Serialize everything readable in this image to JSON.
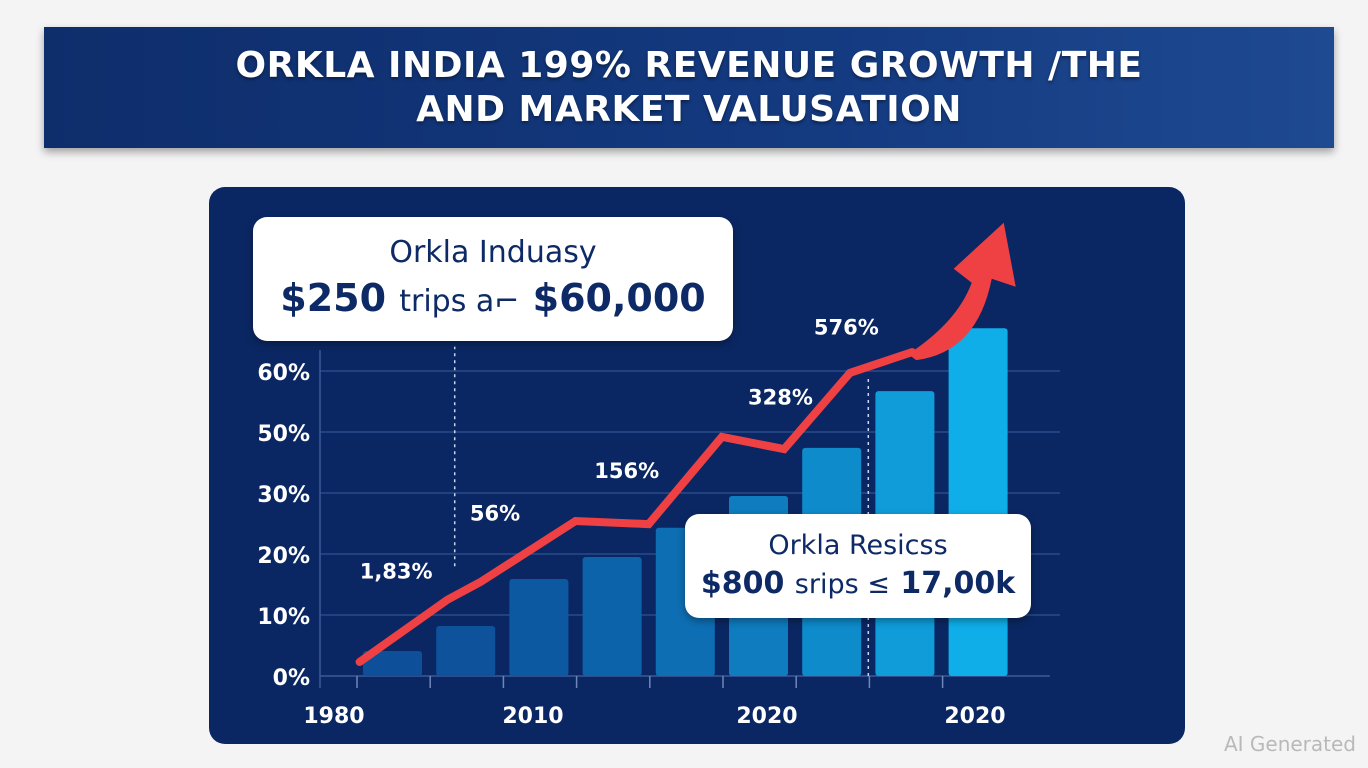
{
  "title": {
    "line1": "Orkla India 199% Revenue Growth /the",
    "line2": "and market Valusation"
  },
  "callouts": [
    {
      "title": "Orkla Induasy",
      "value_left": "$250",
      "value_mid": "trips a⌐",
      "value_right": "$60,000"
    },
    {
      "title": "Orkla Resicss",
      "value_left": "$800",
      "value_mid": "srips ≤",
      "value_right": "17,00k"
    }
  ],
  "watermark": "AI Generated",
  "colors": {
    "background": "#f4f4f5",
    "banner": "#143a80",
    "panel": "#0b2763",
    "line": "#ef4143",
    "bar_start": "#0d4f98",
    "bar_end": "#0faee9",
    "text": "#ffffff",
    "callout_text": "#0d2a66"
  },
  "chart_data": {
    "type": "bar",
    "title": "Orkla India 199% Revenue Growth /the and market Valusation",
    "xlabel": "",
    "ylabel": "",
    "y_tick_labels": [
      "0%",
      "10%",
      "20%",
      "30%",
      "50%",
      "60%"
    ],
    "y_tick_note": "tick labels are evenly spaced; values below are in tick-index units (0 = 0%, 6 = 60% tick)",
    "ylim": [
      0,
      6
    ],
    "x_tick_labels": [
      "1980",
      "2010",
      "2020",
      "2020"
    ],
    "grid": true,
    "legend": "none",
    "bars": {
      "name": "Revenue",
      "values": [
        0.41,
        0.82,
        1.59,
        1.95,
        2.43,
        2.95,
        3.74,
        4.67,
        5.7
      ]
    },
    "line": {
      "name": "Growth",
      "x_index": [
        -0.45,
        0.75,
        1.2,
        2.5,
        3.5,
        4.5,
        5.35,
        6.25,
        7.1
      ],
      "values": [
        0.23,
        1.25,
        1.54,
        2.54,
        2.49,
        3.92,
        3.72,
        4.97,
        5.31
      ],
      "arrow_to": {
        "x_index": 8.35,
        "value": 7.3
      }
    },
    "annotations": [
      {
        "text": "1,83%",
        "x_index": 0.05,
        "value": 1.6
      },
      {
        "text": "56%",
        "x_index": 1.4,
        "value": 2.55
      },
      {
        "text": "156%",
        "x_index": 3.2,
        "value": 3.25
      },
      {
        "text": "328%",
        "x_index": 5.3,
        "value": 4.45
      },
      {
        "text": "576%",
        "x_index": 6.2,
        "value": 5.6
      }
    ],
    "dotted_guides": [
      {
        "x_index": 0.85,
        "from_value": 1.8,
        "to_value": 5.4
      },
      {
        "x_index": 6.5,
        "from_value": 0,
        "to_value": 4.9
      }
    ]
  }
}
